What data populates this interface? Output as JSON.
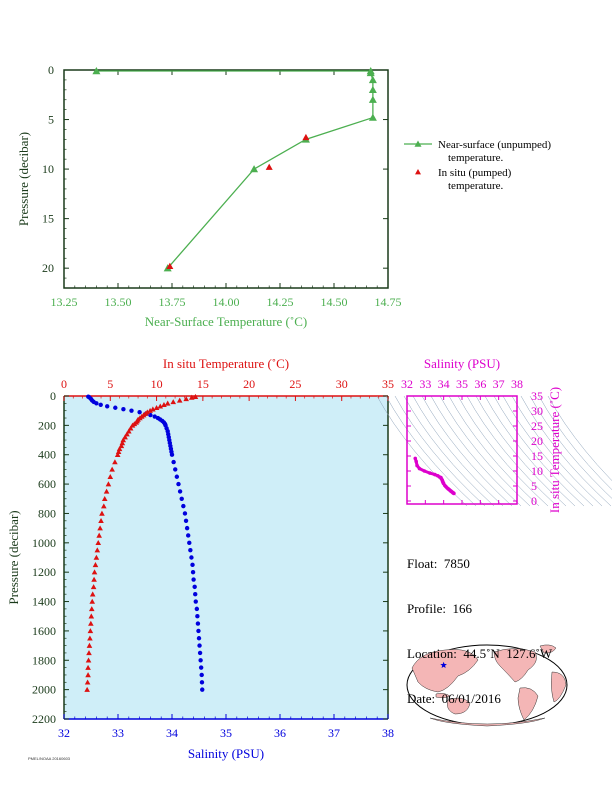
{
  "colors": {
    "green": "#4caf50",
    "red": "#dd1111",
    "blue": "#0000dd",
    "magenta": "#dd00cc",
    "axis_dark": "#1a3a1a",
    "plot_bg": "#cfeef8"
  },
  "chart_data": [
    {
      "type": "line",
      "id": "near-surface",
      "xlabel": "Near-Surface Temperature (˚C)",
      "ylabel": "Pressure (decibar)",
      "xlim": [
        13.25,
        14.75
      ],
      "ylim": [
        0,
        22
      ],
      "x_ticks": [
        "13.25",
        "13.50",
        "13.75",
        "14.00",
        "14.25",
        "14.50",
        "14.75"
      ],
      "y_ticks": [
        "0",
        "5",
        "10",
        "15",
        "20"
      ],
      "series": [
        {
          "name": "Near-surface (unpumped) temperature.",
          "marker": "triangle",
          "color": "green",
          "points": [
            [
              13.4,
              0.1
            ],
            [
              14.67,
              0.1
            ],
            [
              14.67,
              0.3
            ],
            [
              14.68,
              1.0
            ],
            [
              14.68,
              2.0
            ],
            [
              14.68,
              3.0
            ],
            [
              14.68,
              4.8
            ],
            [
              14.37,
              7.0
            ],
            [
              14.13,
              10.0
            ],
            [
              13.73,
              20.0
            ]
          ]
        },
        {
          "name": "In situ (pumped) temperature.",
          "marker": "triangle",
          "color": "red",
          "points": [
            [
              14.37,
              6.8
            ],
            [
              14.2,
              9.8
            ],
            [
              13.74,
              19.8
            ]
          ]
        }
      ],
      "legend": [
        {
          "line1": "Near-surface (unpumped)",
          "line2": "temperature."
        },
        {
          "line1": "In situ (pumped)",
          "line2": "temperature."
        }
      ]
    },
    {
      "type": "line",
      "id": "profile",
      "xlabel_top": "In situ Temperature (˚C)",
      "xlabel_bottom": "Salinity (PSU)",
      "ylabel": "Pressure (decibar)",
      "temp_range": [
        0,
        35
      ],
      "sal_range": [
        32,
        38
      ],
      "ylim": [
        0,
        2200
      ],
      "temp_ticks": [
        "0",
        "5",
        "10",
        "15",
        "20",
        "25",
        "30",
        "35"
      ],
      "sal_ticks": [
        "32",
        "33",
        "34",
        "35",
        "36",
        "37",
        "38"
      ],
      "y_ticks": [
        "0",
        "200",
        "400",
        "600",
        "800",
        "1000",
        "1200",
        "1400",
        "1600",
        "1800",
        "2000",
        "2200"
      ],
      "temperature": {
        "p": [
          5,
          10,
          20,
          30,
          40,
          50,
          60,
          70,
          80,
          90,
          100,
          110,
          120,
          130,
          140,
          150,
          160,
          170,
          180,
          190,
          200,
          220,
          240,
          260,
          280,
          300,
          320,
          340,
          360,
          380,
          400,
          450,
          500,
          550,
          600,
          650,
          700,
          750,
          800,
          850,
          900,
          950,
          1000,
          1050,
          1100,
          1150,
          1200,
          1250,
          1300,
          1350,
          1400,
          1450,
          1500,
          1550,
          1600,
          1650,
          1700,
          1750,
          1800,
          1850,
          1900,
          1950,
          2000
        ],
        "t": [
          14.2,
          13.8,
          13.2,
          12.5,
          11.8,
          11.2,
          10.8,
          10.4,
          10.0,
          9.6,
          9.3,
          9.0,
          8.8,
          8.6,
          8.4,
          8.2,
          8.0,
          7.9,
          7.8,
          7.6,
          7.4,
          7.2,
          7.0,
          6.8,
          6.6,
          6.4,
          6.3,
          6.2,
          6.0,
          5.9,
          5.8,
          5.5,
          5.2,
          5.0,
          4.8,
          4.6,
          4.4,
          4.3,
          4.1,
          4.0,
          3.9,
          3.8,
          3.7,
          3.6,
          3.5,
          3.4,
          3.3,
          3.25,
          3.2,
          3.1,
          3.05,
          3.0,
          2.95,
          2.9,
          2.85,
          2.8,
          2.75,
          2.7,
          2.65,
          2.6,
          2.6,
          2.55,
          2.5
        ]
      },
      "salinity": {
        "p": [
          5,
          10,
          20,
          30,
          40,
          50,
          60,
          70,
          80,
          90,
          100,
          110,
          120,
          130,
          140,
          150,
          160,
          170,
          180,
          190,
          200,
          220,
          240,
          260,
          280,
          300,
          320,
          340,
          360,
          380,
          400,
          450,
          500,
          550,
          600,
          650,
          700,
          750,
          800,
          850,
          900,
          950,
          1000,
          1050,
          1100,
          1150,
          1200,
          1250,
          1300,
          1350,
          1400,
          1450,
          1500,
          1550,
          1600,
          1650,
          1700,
          1750,
          1800,
          1850,
          1900,
          1950,
          2000
        ],
        "s": [
          32.45,
          32.47,
          32.5,
          32.52,
          32.55,
          32.6,
          32.68,
          32.8,
          32.95,
          33.1,
          33.25,
          33.4,
          33.52,
          33.6,
          33.68,
          33.74,
          33.78,
          33.82,
          33.85,
          33.87,
          33.88,
          33.9,
          33.92,
          33.93,
          33.94,
          33.95,
          33.96,
          33.97,
          33.98,
          33.99,
          34.0,
          34.03,
          34.06,
          34.09,
          34.12,
          34.15,
          34.18,
          34.21,
          34.24,
          34.26,
          34.28,
          34.3,
          34.32,
          34.34,
          34.36,
          34.38,
          34.39,
          34.4,
          34.42,
          34.43,
          34.44,
          34.46,
          34.47,
          34.48,
          34.49,
          34.5,
          34.51,
          34.52,
          34.53,
          34.54,
          34.55,
          34.555,
          34.56
        ]
      }
    },
    {
      "type": "scatter",
      "id": "ts-diagram",
      "xlabel": "Salinity (PSU)",
      "ylabel": "In situ Temperature (˚C)",
      "xlim": [
        32,
        38
      ],
      "ylim": [
        -1,
        35
      ],
      "x_ticks": [
        "32",
        "33",
        "34",
        "35",
        "36",
        "37",
        "38"
      ],
      "y_ticks": [
        "0",
        "5",
        "10",
        "15",
        "20",
        "25",
        "30",
        "35"
      ],
      "points": [
        [
          32.45,
          14.2
        ],
        [
          32.5,
          13.2
        ],
        [
          32.55,
          11.8
        ],
        [
          32.68,
          10.8
        ],
        [
          32.95,
          10.0
        ],
        [
          33.25,
          9.3
        ],
        [
          33.52,
          8.8
        ],
        [
          33.68,
          8.4
        ],
        [
          33.78,
          8.0
        ],
        [
          33.85,
          7.8
        ],
        [
          33.88,
          7.4
        ],
        [
          33.92,
          7.0
        ],
        [
          33.94,
          6.6
        ],
        [
          33.96,
          6.3
        ],
        [
          33.98,
          6.0
        ],
        [
          34.0,
          5.8
        ],
        [
          34.06,
          5.2
        ],
        [
          34.12,
          4.8
        ],
        [
          34.18,
          4.4
        ],
        [
          34.24,
          4.1
        ],
        [
          34.28,
          3.9
        ],
        [
          34.32,
          3.7
        ],
        [
          34.36,
          3.5
        ],
        [
          34.39,
          3.3
        ],
        [
          34.42,
          3.2
        ],
        [
          34.46,
          3.0
        ],
        [
          34.49,
          2.85
        ],
        [
          34.52,
          2.7
        ],
        [
          34.55,
          2.6
        ],
        [
          34.56,
          2.5
        ]
      ]
    }
  ],
  "info": {
    "float": "Float:  7850",
    "profile": "Profile:  166",
    "location": "Location:  44.5˚N  127.6˚W",
    "date": "Date:  06/01/2016"
  },
  "map": {
    "location_marker": {
      "lat": 44.5,
      "lon": -127.6
    }
  },
  "footer": "PMEL/NOAA 20160603"
}
